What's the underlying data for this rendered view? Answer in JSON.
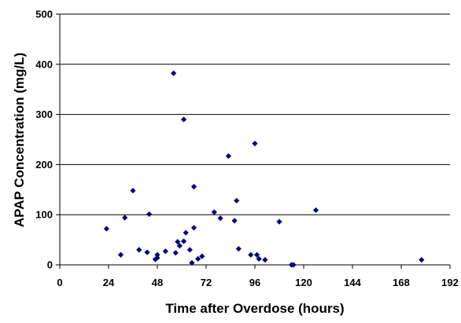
{
  "chart_data": {
    "type": "scatter",
    "title": "",
    "xlabel": "Time after Overdose (hours)",
    "ylabel": "APAP Concentration (mg/L)",
    "xlim": [
      0,
      192
    ],
    "ylim": [
      0,
      500
    ],
    "xticks": [
      0,
      24,
      48,
      72,
      96,
      120,
      144,
      168,
      192
    ],
    "yticks": [
      0,
      100,
      200,
      300,
      400,
      500
    ],
    "grid": "horizontal",
    "legend": "none",
    "marker_color": "#000080",
    "marker_shape": "diamond",
    "series": [
      {
        "points": [
          [
            23,
            72
          ],
          [
            30,
            20
          ],
          [
            32,
            94
          ],
          [
            36,
            148
          ],
          [
            39,
            30
          ],
          [
            43,
            25
          ],
          [
            44,
            101
          ],
          [
            47,
            11
          ],
          [
            48,
            20
          ],
          [
            48,
            14
          ],
          [
            52,
            27
          ],
          [
            56,
            382
          ],
          [
            57,
            24
          ],
          [
            58,
            46
          ],
          [
            59,
            38
          ],
          [
            61,
            290
          ],
          [
            61,
            47
          ],
          [
            62,
            64
          ],
          [
            64,
            30
          ],
          [
            65,
            4
          ],
          [
            66,
            74
          ],
          [
            66,
            156
          ],
          [
            68,
            12
          ],
          [
            70,
            17
          ],
          [
            76,
            105
          ],
          [
            79,
            93
          ],
          [
            83,
            217
          ],
          [
            86,
            88
          ],
          [
            87,
            128
          ],
          [
            88,
            32
          ],
          [
            94,
            20
          ],
          [
            96,
            242
          ],
          [
            97,
            20
          ],
          [
            98,
            12
          ],
          [
            101,
            10
          ],
          [
            108,
            86
          ],
          [
            114,
            0
          ],
          [
            115,
            0
          ],
          [
            126,
            109
          ],
          [
            178,
            10
          ]
        ]
      }
    ]
  }
}
